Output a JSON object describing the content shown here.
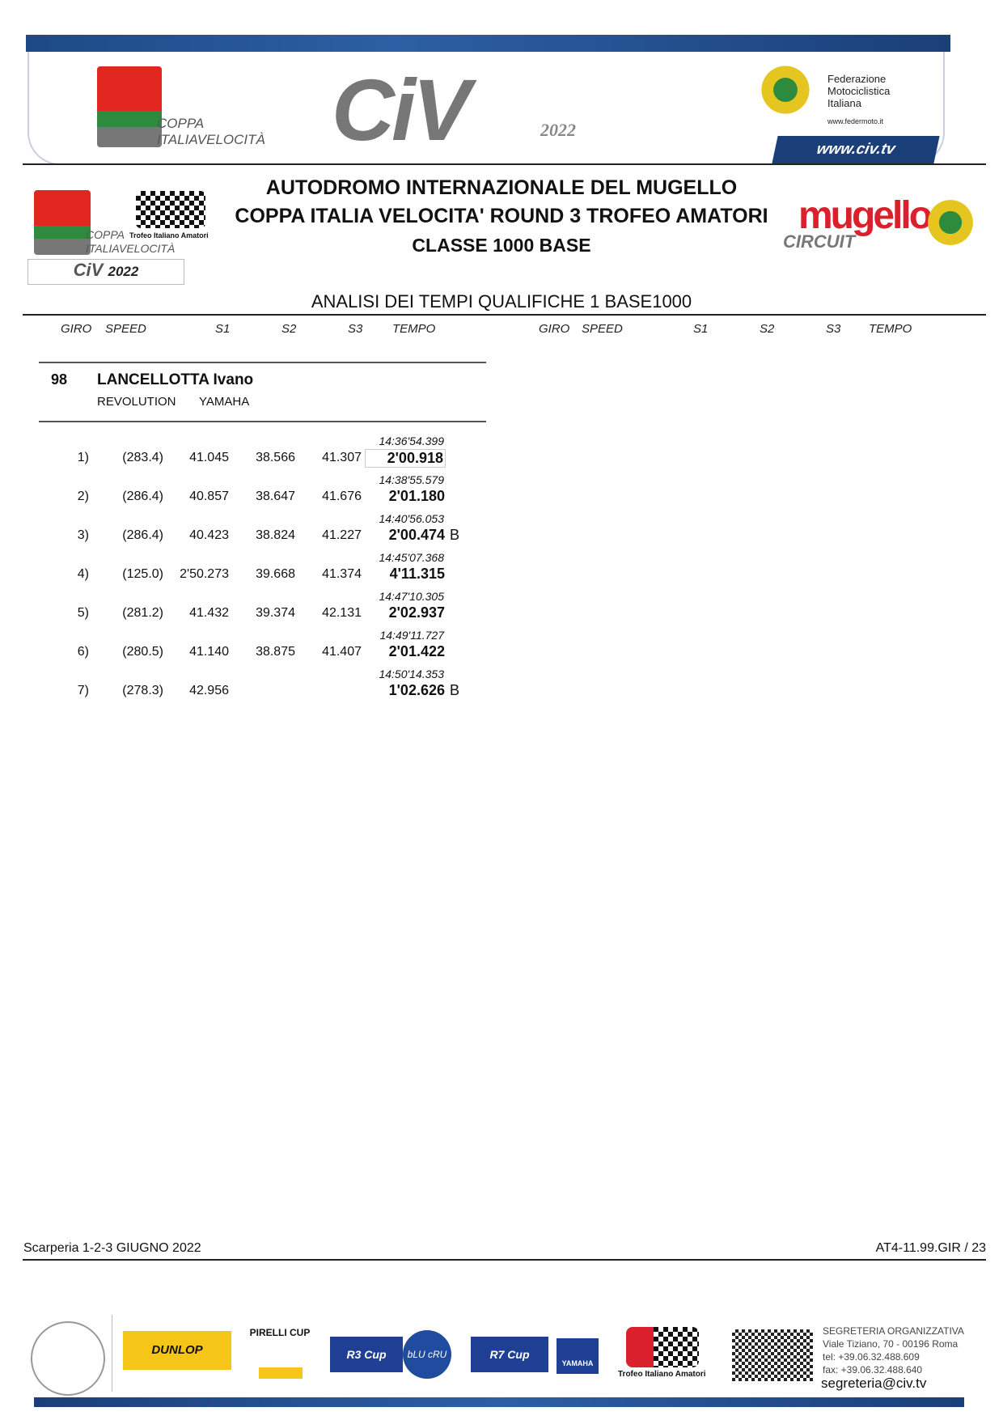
{
  "header": {
    "logo_left_text": [
      "COPPA",
      "ITALIAVELOCITÀ"
    ],
    "civ_logo": "CiV",
    "civ_year": "2022",
    "fmi_text": [
      "Federazione",
      "Motociclistica",
      "Italiana"
    ],
    "fmi_url": "www.federmoto.it",
    "site": "www.civ.tv"
  },
  "event": {
    "line1": "AUTODROMO INTERNAZIONALE DEL MUGELLO",
    "line2": "COPPA ITALIA VELOCITA' ROUND 3   TROFEO AMATORI",
    "line3": "CLASSE 1000 BASE",
    "report_title": "ANALISI DEI TEMPI QUALIFICHE 1  BASE1000",
    "mugello_logo": [
      "mugello",
      "CIRCUIT"
    ],
    "trofeo_logo": "Trofeo Italiano Amatori"
  },
  "columns": [
    "GIRO",
    "SPEED",
    "S1",
    "S2",
    "S3",
    "TEMPO"
  ],
  "rider": {
    "number": "98",
    "name": "LANCELLOTTA Ivano",
    "team": "REVOLUTION",
    "bike": "YAMAHA"
  },
  "laps": [
    {
      "lap": "1)",
      "speed": "(283.4)",
      "s1": "41.045",
      "s2": "38.566",
      "s3": "41.307",
      "time_of_day": "14:36'54.399",
      "tempo": "2'00.918",
      "flag": "",
      "boxed": true
    },
    {
      "lap": "2)",
      "speed": "(286.4)",
      "s1": "40.857",
      "s2": "38.647",
      "s3": "41.676",
      "time_of_day": "14:38'55.579",
      "tempo": "2'01.180",
      "flag": ""
    },
    {
      "lap": "3)",
      "speed": "(286.4)",
      "s1": "40.423",
      "s2": "38.824",
      "s3": "41.227",
      "time_of_day": "14:40'56.053",
      "tempo": "2'00.474",
      "flag": "B"
    },
    {
      "lap": "4)",
      "speed": "(125.0)",
      "s1": "2'50.273",
      "s2": "39.668",
      "s3": "41.374",
      "time_of_day": "14:45'07.368",
      "tempo": "4'11.315",
      "flag": ""
    },
    {
      "lap": "5)",
      "speed": "(281.2)",
      "s1": "41.432",
      "s2": "39.374",
      "s3": "42.131",
      "time_of_day": "14:47'10.305",
      "tempo": "2'02.937",
      "flag": ""
    },
    {
      "lap": "6)",
      "speed": "(280.5)",
      "s1": "41.140",
      "s2": "38.875",
      "s3": "41.407",
      "time_of_day": "14:49'11.727",
      "tempo": "2'01.422",
      "flag": ""
    },
    {
      "lap": "7)",
      "speed": "(278.3)",
      "s1": "42.956",
      "s2": "",
      "s3": "",
      "time_of_day": "14:50'14.353",
      "tempo": "1'02.626",
      "flag": "B"
    }
  ],
  "footer": {
    "location_date": "Scarperia 1-2-3  GIUGNO 2022",
    "doc_code": "AT4-11.99.GIR / 23",
    "sponsors": [
      "DUNLOP",
      "PIRELLI CUP",
      "R3 Cup",
      "bLU cRU",
      "R7 Cup",
      "YAMAHA",
      "Trofeo Italiano Amatori"
    ],
    "contact": [
      "SEGRETERIA ORGANIZZATIVA",
      "Viale Tiziano, 70 - 00196 Roma",
      "tel: +39.06.32.488.609",
      "fax: +39.06.32.488.640"
    ],
    "email": "segreteria@civ.tv"
  }
}
